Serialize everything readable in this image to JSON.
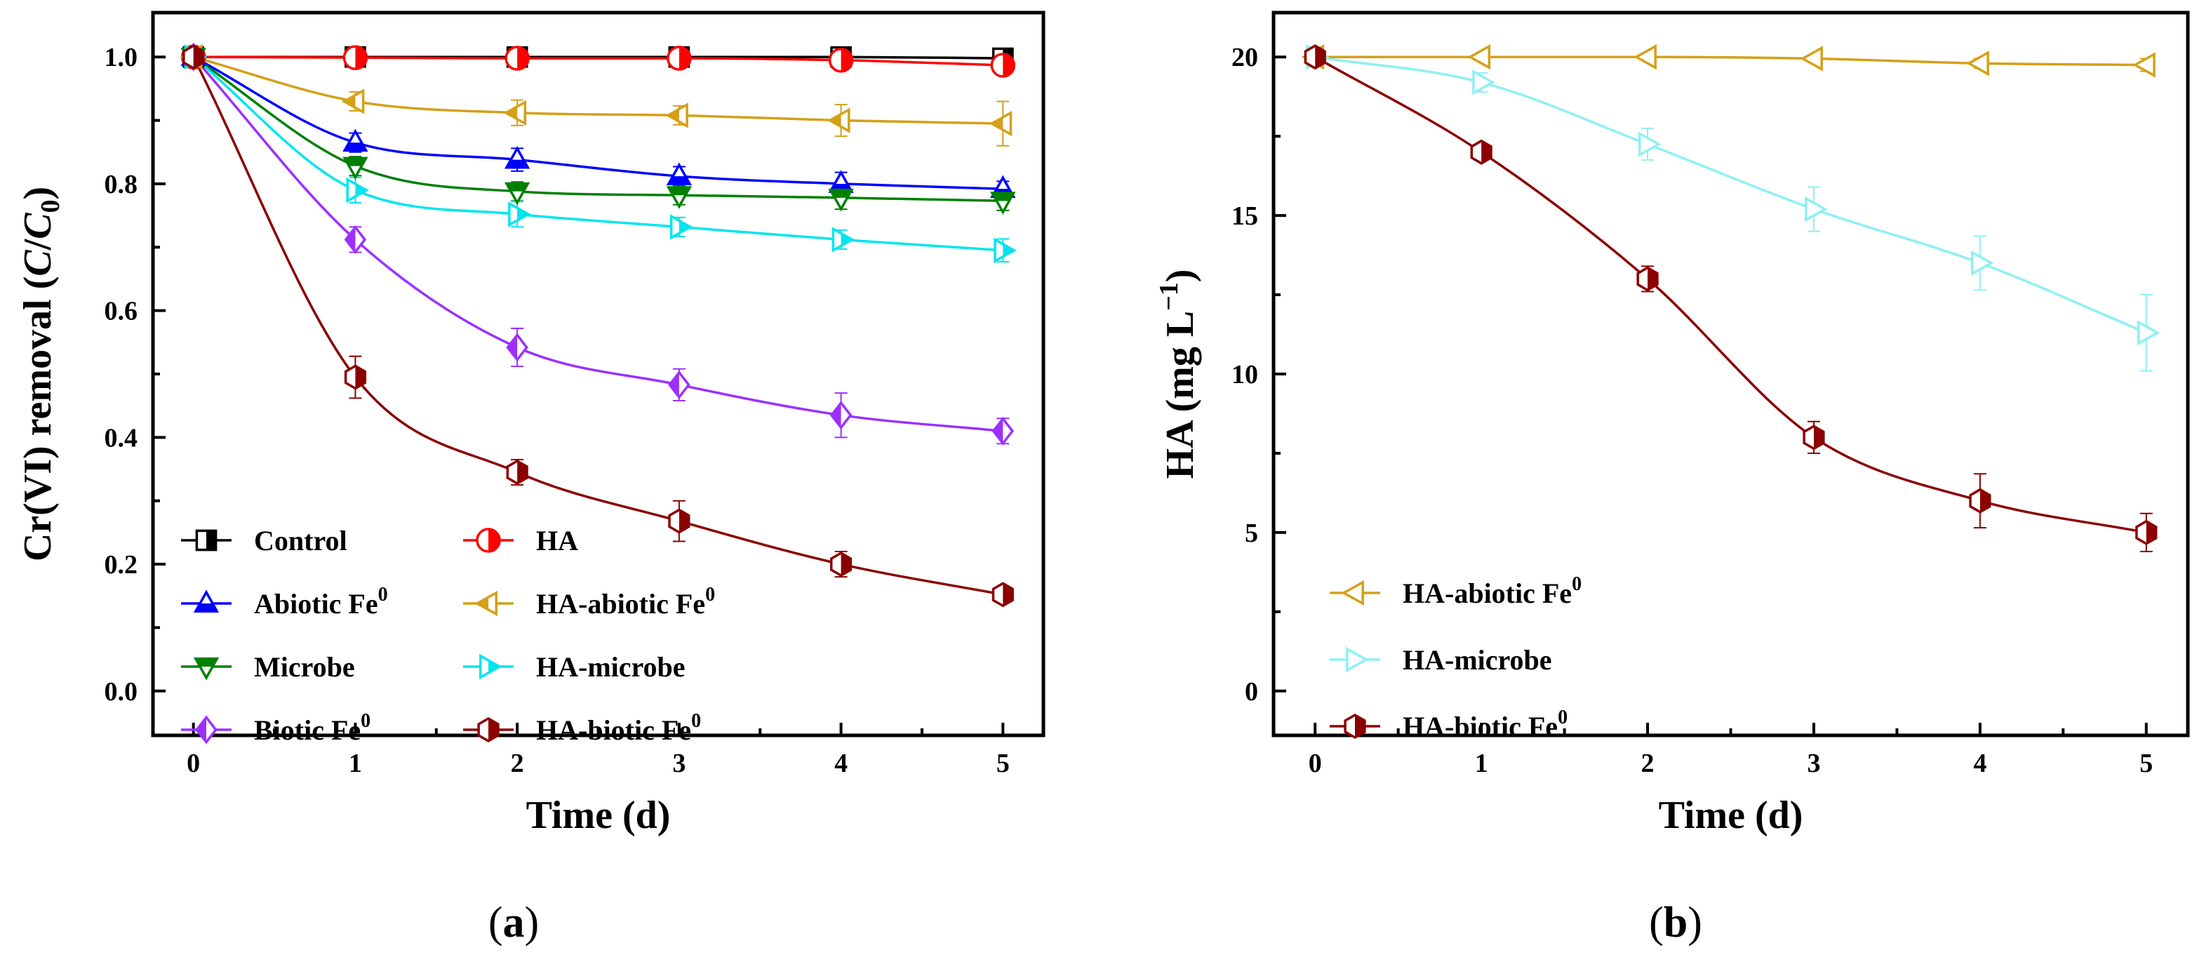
{
  "chart_data": [
    {
      "panel": "a",
      "type": "line",
      "panel_label": "a",
      "xlabel": "Time (d)",
      "ylabel": "Cr(VI) removal (C/C0)",
      "ylabel_parts": [
        "Cr(VI) removal (",
        "C",
        "/",
        "C",
        "0",
        ")"
      ],
      "xlim": [
        -0.25,
        5.25
      ],
      "ylim": [
        -0.07,
        1.07
      ],
      "xticks": [
        0,
        1,
        2,
        3,
        4,
        5
      ],
      "yticks": [
        0.0,
        0.2,
        0.4,
        0.6,
        0.8,
        1.0
      ],
      "ytick_labels": [
        "0.0",
        "0.2",
        "0.4",
        "0.6",
        "0.8",
        "1.0"
      ],
      "legend_placement": "bottom-left, two columns",
      "x": [
        0,
        1,
        2,
        3,
        4,
        5
      ],
      "series": [
        {
          "name": "Control",
          "label_base": "Control",
          "label_sup": "",
          "color": "#000000",
          "marker": "square-half",
          "values": [
            1.0,
            1.0,
            1.0,
            1.0,
            1.0,
            0.998
          ],
          "errors": [
            0.005,
            0.005,
            0.005,
            0.005,
            0.005,
            0.005
          ]
        },
        {
          "name": "HA",
          "label_base": "HA",
          "label_sup": "",
          "color": "#ff0000",
          "marker": "circle-half",
          "values": [
            1.0,
            0.999,
            0.998,
            0.998,
            0.995,
            0.987
          ],
          "errors": [
            0.006,
            0.006,
            0.006,
            0.006,
            0.008,
            0.01
          ]
        },
        {
          "name": "Abiotic Fe0",
          "label_base": "Abiotic Fe",
          "label_sup": "0",
          "color": "#0000ff",
          "marker": "triangle-up-half",
          "values": [
            1.0,
            0.865,
            0.838,
            0.812,
            0.8,
            0.792
          ],
          "errors": [
            0.006,
            0.015,
            0.018,
            0.015,
            0.018,
            0.012
          ]
        },
        {
          "name": "HA-abiotic Fe0",
          "label_base": "HA-abiotic Fe",
          "label_sup": "0",
          "color": "#d4a017",
          "marker": "triangle-left-half",
          "values": [
            1.0,
            0.93,
            0.912,
            0.908,
            0.9,
            0.895
          ],
          "errors": [
            0.006,
            0.015,
            0.02,
            0.015,
            0.025,
            0.035
          ]
        },
        {
          "name": "Microbe",
          "label_base": "Microbe",
          "label_sup": "",
          "color": "#008000",
          "marker": "triangle-down-half",
          "values": [
            1.0,
            0.828,
            0.788,
            0.782,
            0.778,
            0.773
          ],
          "errors": [
            0.006,
            0.015,
            0.015,
            0.015,
            0.018,
            0.015
          ]
        },
        {
          "name": "HA-microbe",
          "label_base": "HA-microbe",
          "label_sup": "",
          "color": "#00e5ee",
          "marker": "triangle-right-half",
          "values": [
            1.0,
            0.79,
            0.752,
            0.732,
            0.712,
            0.695
          ],
          "errors": [
            0.006,
            0.02,
            0.02,
            0.015,
            0.015,
            0.018
          ]
        },
        {
          "name": "Biotic Fe0",
          "label_base": "Biotic Fe",
          "label_sup": "0",
          "color": "#9b30ff",
          "marker": "diamond-half",
          "values": [
            1.0,
            0.712,
            0.542,
            0.483,
            0.435,
            0.41
          ],
          "errors": [
            0.006,
            0.02,
            0.03,
            0.025,
            0.035,
            0.02
          ]
        },
        {
          "name": "HA-biotic Fe0",
          "label_base": "HA-biotic Fe",
          "label_sup": "0",
          "color": "#8b0000",
          "marker": "hexagon-half",
          "values": [
            1.0,
            0.495,
            0.345,
            0.268,
            0.2,
            0.152
          ],
          "errors": [
            0.006,
            0.033,
            0.02,
            0.032,
            0.02,
            0.012
          ]
        }
      ]
    },
    {
      "panel": "b",
      "type": "line",
      "panel_label": "b",
      "xlabel": "Time (d)",
      "ylabel": "HA (mg L−1)",
      "ylabel_parts": [
        "HA  (mg L",
        "−1",
        ")"
      ],
      "xlim": [
        -0.25,
        5.25
      ],
      "ylim": [
        -1.4,
        21.4
      ],
      "xticks": [
        0,
        1,
        2,
        3,
        4,
        5
      ],
      "yticks": [
        0,
        5,
        10,
        15,
        20
      ],
      "ytick_labels": [
        "0",
        "5",
        "10",
        "15",
        "20"
      ],
      "legend_placement": "bottom-left",
      "x": [
        0,
        1,
        2,
        3,
        4,
        5
      ],
      "series": [
        {
          "name": "HA-abiotic Fe0",
          "label_base": "HA-abiotic Fe",
          "label_sup": "0",
          "color": "#d4a017",
          "marker": "triangle-left-open",
          "values": [
            20.0,
            20.0,
            20.0,
            19.95,
            19.8,
            19.75
          ],
          "errors": [
            0.1,
            0.1,
            0.1,
            0.12,
            0.15,
            0.2
          ]
        },
        {
          "name": "HA-microbe",
          "label_base": "HA-microbe",
          "label_sup": "",
          "color": "#8ef0f4",
          "marker": "triangle-right-open",
          "values": [
            20.0,
            19.2,
            17.25,
            15.2,
            13.5,
            11.3
          ],
          "errors": [
            0.1,
            0.3,
            0.5,
            0.7,
            0.85,
            1.2
          ]
        },
        {
          "name": "HA-biotic Fe0",
          "label_base": "HA-biotic Fe",
          "label_sup": "0",
          "color": "#8b0000",
          "marker": "hexagon-half",
          "values": [
            20.0,
            17.0,
            13.0,
            8.0,
            6.0,
            5.0
          ],
          "errors": [
            0.1,
            0.2,
            0.4,
            0.5,
            0.85,
            0.6
          ]
        }
      ]
    }
  ]
}
